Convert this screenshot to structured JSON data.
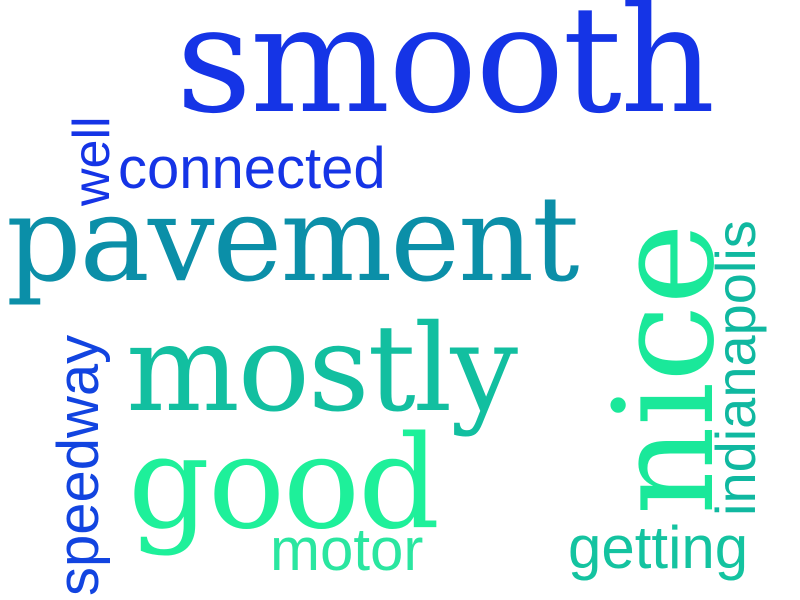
{
  "colors": {
    "blue": "#1534e6",
    "teal_blue": "#0a7fb0",
    "teal": "#0aa39c",
    "green_teal": "#12c79a",
    "mint": "#1ef09a"
  },
  "words": {
    "smooth": "smooth",
    "well": "well",
    "connected": "connected",
    "pavement": "pavement",
    "nice": "nice",
    "indianapolis": "indianapolis",
    "speedway": "speedway",
    "mostly": "mostly",
    "good": "good",
    "motor": "motor",
    "getting": "getting"
  }
}
